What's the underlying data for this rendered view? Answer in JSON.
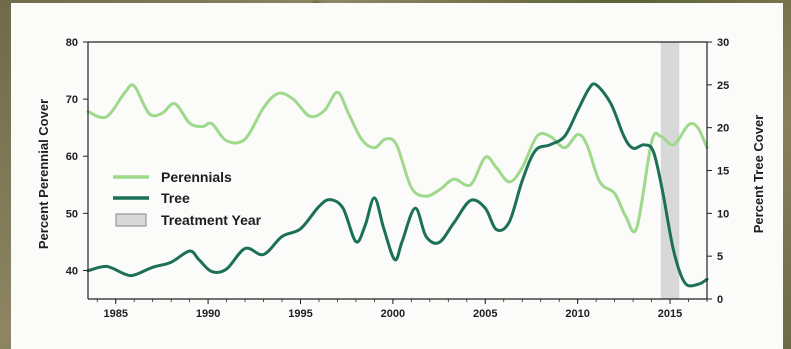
{
  "chart_data": {
    "type": "line",
    "title": "",
    "xlabel": "",
    "ylabel": "Percent Perennial Cover",
    "ylabel_right": "Percent Tree Cover",
    "xlim": [
      1983.5,
      2017
    ],
    "ylim": [
      35,
      80
    ],
    "ylim_right": [
      0,
      30
    ],
    "x_ticks": [
      "1985",
      "1990",
      "1995",
      "2000",
      "2005",
      "2010",
      "2015"
    ],
    "y_ticks": [
      "40",
      "50",
      "60",
      "70",
      "80"
    ],
    "y_ticks_right": [
      "0",
      "5",
      "10",
      "15",
      "20",
      "25",
      "30"
    ],
    "grid": false,
    "legend_position": "left",
    "series": [
      {
        "name": "Perennials",
        "axis": "left",
        "color": "#9ed98c",
        "points": [
          [
            1983.5,
            67.8
          ],
          [
            1984.5,
            66.9
          ],
          [
            1985.5,
            71.2
          ],
          [
            1986.0,
            72.3
          ],
          [
            1986.8,
            67.5
          ],
          [
            1987.5,
            67.5
          ],
          [
            1988.2,
            69.2
          ],
          [
            1989.0,
            65.8
          ],
          [
            1989.7,
            65.2
          ],
          [
            1990.2,
            65.7
          ],
          [
            1991.0,
            62.7
          ],
          [
            1992.0,
            63.0
          ],
          [
            1993.0,
            68.5
          ],
          [
            1993.8,
            71.0
          ],
          [
            1994.6,
            70.0
          ],
          [
            1995.5,
            67.0
          ],
          [
            1996.3,
            68.0
          ],
          [
            1997.0,
            71.2
          ],
          [
            1997.6,
            67.5
          ],
          [
            1998.3,
            63.0
          ],
          [
            1999.0,
            61.5
          ],
          [
            1999.6,
            63.0
          ],
          [
            2000.2,
            62.0
          ],
          [
            2001.0,
            54.5
          ],
          [
            2001.8,
            53.0
          ],
          [
            2002.6,
            54.3
          ],
          [
            2003.3,
            56.0
          ],
          [
            2004.2,
            55.0
          ],
          [
            2005.0,
            59.8
          ],
          [
            2005.6,
            58.0
          ],
          [
            2006.3,
            55.5
          ],
          [
            2007.0,
            58.0
          ],
          [
            2007.8,
            63.5
          ],
          [
            2008.5,
            63.5
          ],
          [
            2009.3,
            61.5
          ],
          [
            2010.0,
            63.8
          ],
          [
            2010.5,
            62.0
          ],
          [
            2011.2,
            55.5
          ],
          [
            2012.0,
            53.5
          ],
          [
            2012.6,
            49.5
          ],
          [
            2013.2,
            47.5
          ],
          [
            2014.0,
            62.5
          ],
          [
            2014.5,
            63.5
          ],
          [
            2015.2,
            62.0
          ],
          [
            2016.0,
            65.5
          ],
          [
            2016.5,
            65.0
          ],
          [
            2017.0,
            61.5
          ]
        ]
      },
      {
        "name": "Tree",
        "axis": "right",
        "color": "#1d7058",
        "points": [
          [
            1983.5,
            3.3
          ],
          [
            1984.5,
            3.8
          ],
          [
            1985.5,
            2.9
          ],
          [
            1986.0,
            2.8
          ],
          [
            1987.0,
            3.7
          ],
          [
            1988.0,
            4.3
          ],
          [
            1989.0,
            5.6
          ],
          [
            1989.5,
            4.6
          ],
          [
            1990.2,
            3.2
          ],
          [
            1991.0,
            3.5
          ],
          [
            1992.0,
            5.9
          ],
          [
            1993.0,
            5.2
          ],
          [
            1994.0,
            7.3
          ],
          [
            1995.0,
            8.2
          ],
          [
            1996.0,
            10.8
          ],
          [
            1996.6,
            11.6
          ],
          [
            1997.3,
            10.6
          ],
          [
            1998.0,
            6.7
          ],
          [
            1998.5,
            8.6
          ],
          [
            1999.0,
            11.8
          ],
          [
            1999.5,
            8.3
          ],
          [
            2000.1,
            4.6
          ],
          [
            2000.5,
            6.7
          ],
          [
            2001.2,
            10.6
          ],
          [
            2001.8,
            7.3
          ],
          [
            2002.5,
            6.6
          ],
          [
            2003.3,
            8.9
          ],
          [
            2004.2,
            11.5
          ],
          [
            2005.0,
            10.6
          ],
          [
            2005.6,
            8.1
          ],
          [
            2006.3,
            9.0
          ],
          [
            2007.0,
            13.8
          ],
          [
            2007.7,
            17.3
          ],
          [
            2008.5,
            18.0
          ],
          [
            2009.3,
            19.0
          ],
          [
            2010.0,
            22.0
          ],
          [
            2010.6,
            24.5
          ],
          [
            2011.0,
            25.0
          ],
          [
            2011.8,
            22.8
          ],
          [
            2012.5,
            19.0
          ],
          [
            2013.0,
            17.6
          ],
          [
            2013.6,
            18.0
          ],
          [
            2014.1,
            17.2
          ],
          [
            2014.6,
            12.5
          ],
          [
            2015.2,
            5.6
          ],
          [
            2015.8,
            1.9
          ],
          [
            2016.5,
            1.7
          ],
          [
            2017.0,
            2.3
          ]
        ]
      }
    ],
    "treatment_year": {
      "name": "Treatment Year",
      "x_start": 2014.5,
      "x_end": 2015.5,
      "color": "#d8d8d8"
    }
  }
}
